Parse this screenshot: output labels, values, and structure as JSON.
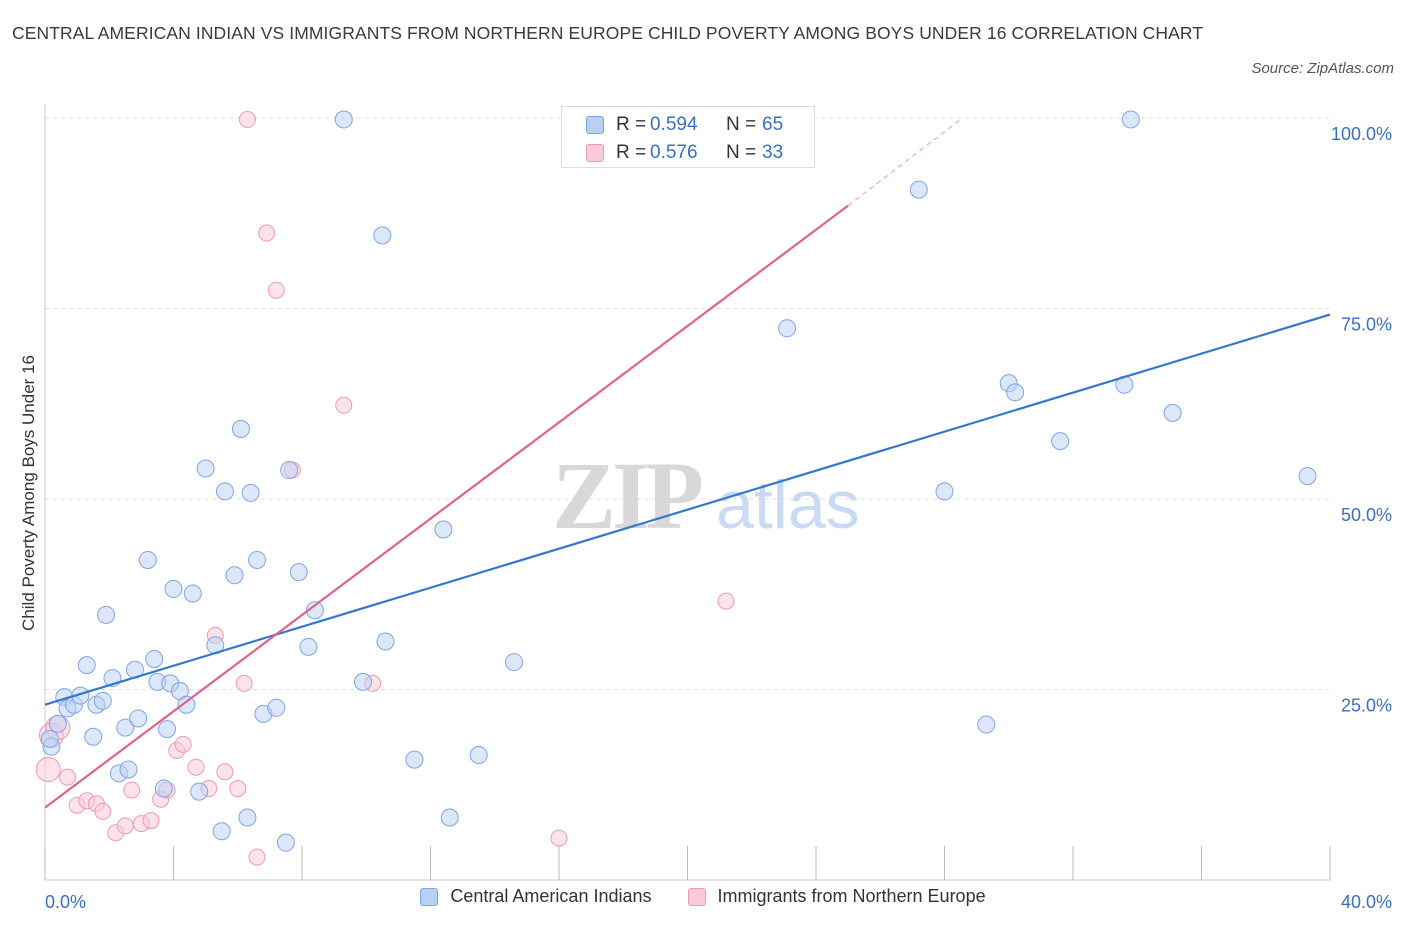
{
  "title": "CENTRAL AMERICAN INDIAN VS IMMIGRANTS FROM NORTHERN EUROPE CHILD POVERTY AMONG BOYS UNDER 16 CORRELATION CHART",
  "source": "Source: ZipAtlas.com",
  "watermark": {
    "zip": "ZIP",
    "atlas": "atlas"
  },
  "stats": [
    {
      "r_label": "R =",
      "r_value": "0.594",
      "n_label": "N =",
      "n_value": "65"
    },
    {
      "r_label": "R =",
      "r_value": "0.576",
      "n_label": "N =",
      "n_value": "33"
    }
  ],
  "legend": [
    "Central American Indians",
    "Immigrants from Northern Europe"
  ],
  "colors": {
    "blue_fill": "#b9d0f5",
    "blue_stroke": "#7ea6e6",
    "blue_line": "#3478d0",
    "pink_fill": "#f9ccd8",
    "pink_stroke": "#ee9ab2",
    "pink_line": "#e0628c",
    "axis_label": "#3b6fc4",
    "grid": "#dddddd"
  },
  "chart_data": {
    "type": "scatter",
    "title": "CENTRAL AMERICAN INDIAN VS IMMIGRANTS FROM NORTHERN EUROPE CHILD POVERTY AMONG BOYS UNDER 16 CORRELATION CHART",
    "xlabel": "",
    "ylabel": "Child Poverty Among Boys Under 16",
    "xlim": [
      0,
      40
    ],
    "ylim": [
      0,
      100
    ],
    "x_tick_labels": [
      "0.0%",
      "40.0%"
    ],
    "y_ticks": [
      25,
      50,
      75,
      100
    ],
    "y_tick_labels": [
      "25.0%",
      "50.0%",
      "75.0%",
      "100.0%"
    ],
    "grid": true,
    "legend_position": "bottom",
    "series": [
      {
        "name": "Central American Indians",
        "color": "blue",
        "points": [
          [
            0.2,
            17.5
          ],
          [
            0.4,
            20.5
          ],
          [
            0.6,
            24.0
          ],
          [
            0.7,
            22.5
          ],
          [
            0.9,
            23.0
          ],
          [
            1.1,
            24.2
          ],
          [
            1.3,
            28.2
          ],
          [
            1.5,
            18.8
          ],
          [
            1.6,
            23.0
          ],
          [
            1.8,
            23.5
          ],
          [
            1.9,
            34.8
          ],
          [
            2.1,
            26.5
          ],
          [
            2.3,
            14.0
          ],
          [
            2.5,
            20.0
          ],
          [
            2.6,
            14.5
          ],
          [
            2.8,
            27.6
          ],
          [
            2.9,
            21.2
          ],
          [
            3.2,
            42.0
          ],
          [
            3.4,
            29.0
          ],
          [
            3.5,
            26.0
          ],
          [
            3.7,
            12.0
          ],
          [
            3.8,
            19.8
          ],
          [
            3.9,
            25.8
          ],
          [
            4.0,
            38.2
          ],
          [
            4.2,
            24.8
          ],
          [
            4.4,
            23.0
          ],
          [
            4.6,
            37.6
          ],
          [
            4.8,
            11.6
          ],
          [
            5.0,
            54.0
          ],
          [
            5.3,
            30.8
          ],
          [
            5.5,
            6.4
          ],
          [
            5.6,
            51.0
          ],
          [
            5.9,
            40.0
          ],
          [
            6.1,
            59.2
          ],
          [
            6.3,
            8.2
          ],
          [
            6.4,
            50.8
          ],
          [
            6.6,
            42.0
          ],
          [
            6.8,
            21.8
          ],
          [
            7.2,
            22.6
          ],
          [
            7.5,
            4.9
          ],
          [
            7.6,
            53.8
          ],
          [
            7.9,
            40.4
          ],
          [
            8.2,
            30.6
          ],
          [
            8.4,
            35.4
          ],
          [
            9.3,
            99.8
          ],
          [
            9.9,
            26.0
          ],
          [
            10.5,
            84.6
          ],
          [
            10.6,
            31.3
          ],
          [
            11.5,
            15.8
          ],
          [
            12.6,
            8.2
          ],
          [
            12.4,
            46.0
          ],
          [
            13.5,
            16.4
          ],
          [
            14.6,
            28.6
          ],
          [
            23.1,
            72.4
          ],
          [
            27.2,
            90.6
          ],
          [
            28.0,
            51.0
          ],
          [
            29.3,
            20.4
          ],
          [
            30.0,
            65.2
          ],
          [
            30.2,
            64.0
          ],
          [
            31.6,
            57.6
          ],
          [
            33.8,
            99.8
          ],
          [
            33.6,
            65.0
          ],
          [
            35.1,
            61.3
          ],
          [
            39.3,
            53.0
          ],
          [
            0.15,
            18.5
          ]
        ]
      },
      {
        "name": "Immigrants from Northern Europe",
        "color": "pink",
        "points": [
          [
            0.1,
            14.5
          ],
          [
            0.2,
            19.0
          ],
          [
            0.4,
            20.0
          ],
          [
            0.7,
            13.5
          ],
          [
            1.0,
            9.8
          ],
          [
            1.3,
            10.4
          ],
          [
            1.6,
            10.0
          ],
          [
            1.8,
            9.0
          ],
          [
            2.2,
            6.2
          ],
          [
            2.5,
            7.1
          ],
          [
            2.7,
            11.8
          ],
          [
            3.0,
            7.4
          ],
          [
            3.3,
            7.8
          ],
          [
            3.6,
            10.6
          ],
          [
            3.8,
            11.8
          ],
          [
            4.1,
            17.0
          ],
          [
            4.3,
            17.8
          ],
          [
            4.7,
            14.8
          ],
          [
            5.1,
            12.0
          ],
          [
            5.3,
            32.1
          ],
          [
            5.6,
            14.2
          ],
          [
            6.0,
            12.0
          ],
          [
            6.2,
            25.8
          ],
          [
            6.3,
            99.8
          ],
          [
            6.6,
            3.0
          ],
          [
            6.9,
            84.9
          ],
          [
            7.2,
            77.4
          ],
          [
            7.7,
            53.8
          ],
          [
            9.3,
            62.3
          ],
          [
            10.2,
            25.8
          ],
          [
            18.0,
            99.8
          ],
          [
            21.2,
            36.6
          ],
          [
            16.0,
            5.5
          ]
        ]
      }
    ],
    "trend_lines": [
      {
        "series": "Central American Indians",
        "x": [
          0,
          40
        ],
        "y": [
          23.0,
          74.2
        ]
      },
      {
        "series": "Immigrants from Northern Europe",
        "x": [
          0,
          25.0
        ],
        "y": [
          9.5,
          88.5
        ],
        "dashed_extension": {
          "x": [
            25.0,
            28.5
          ],
          "y": [
            88.5,
            99.8
          ]
        }
      }
    ]
  }
}
